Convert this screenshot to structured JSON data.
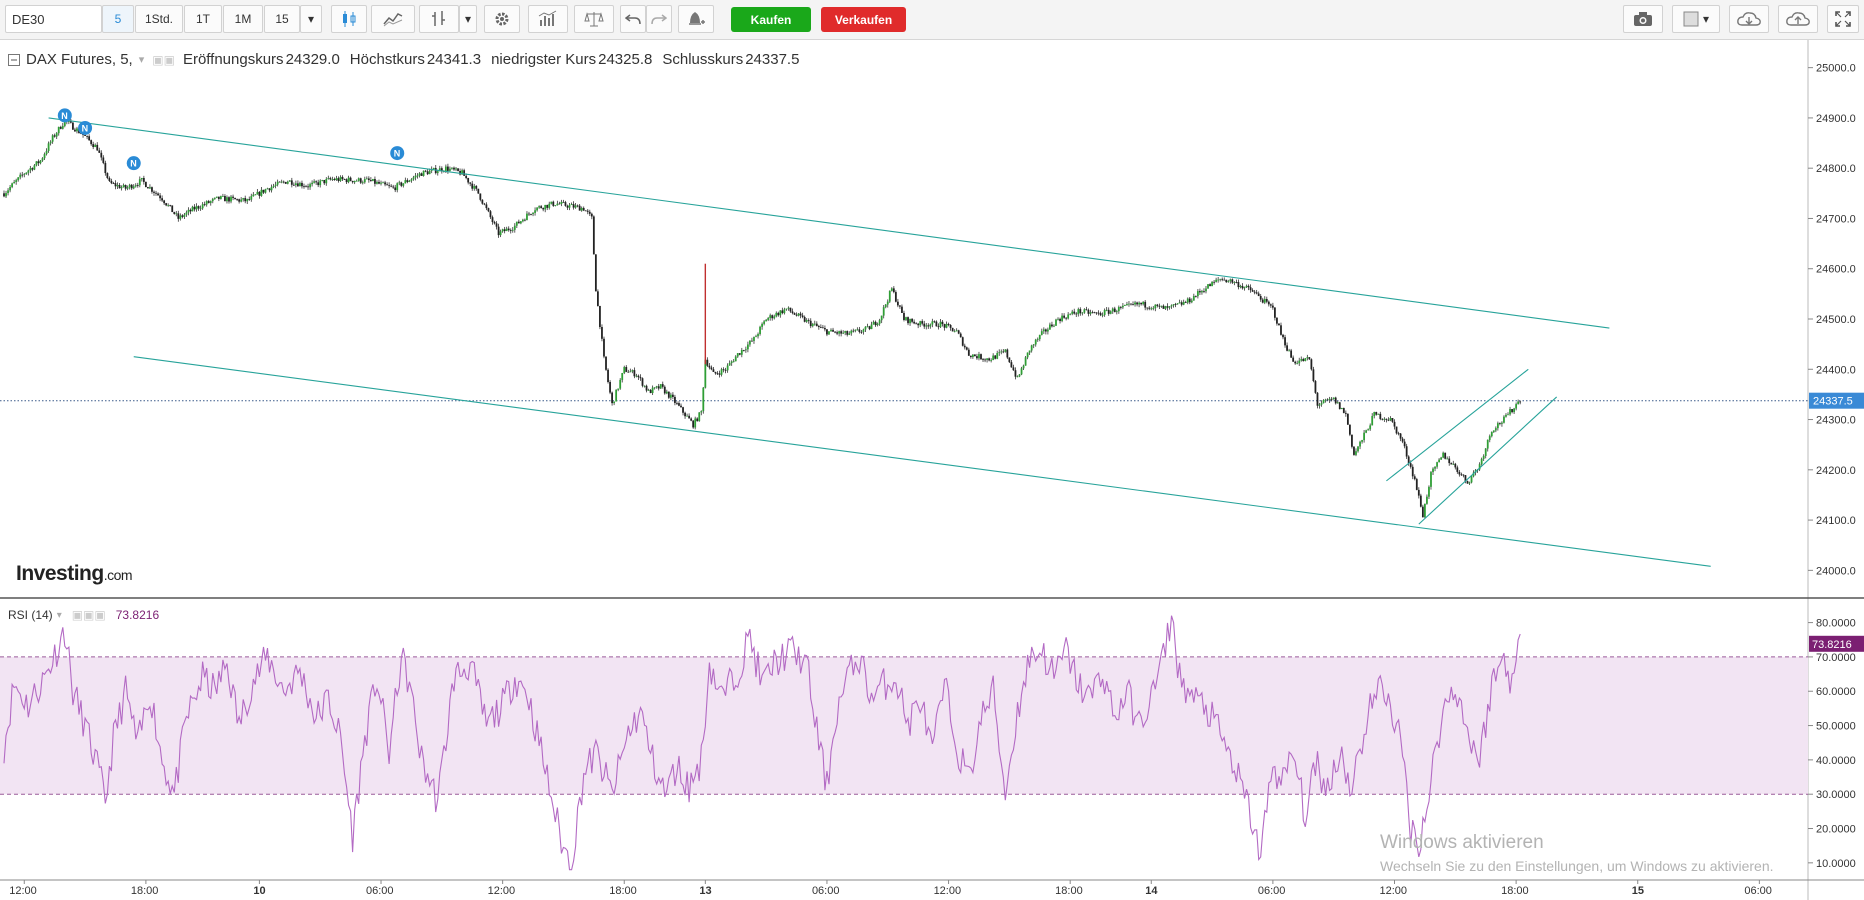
{
  "toolbar": {
    "symbol": "DE30",
    "interval": "5",
    "btn_1std": "1Std.",
    "btn_1t": "1T",
    "btn_1m": "1M",
    "btn_15": "15",
    "buy_label": "Kaufen",
    "sell_label": "Verkaufen",
    "colors": {
      "buy": "#1aa81a",
      "sell": "#e02b2b",
      "active": "#2a8bd6"
    },
    "icons": [
      "candlestick-icon",
      "indicator-icon",
      "chart-type-icon",
      "chevron-down-icon",
      "gear-icon",
      "compare-icon",
      "scale-icon",
      "undo-icon",
      "redo-icon",
      "alert-icon",
      "camera-icon",
      "color-box-icon",
      "chevron-down-icon",
      "cloud-load-icon",
      "cloud-save-icon",
      "fullscreen-icon"
    ]
  },
  "legend": {
    "instrument": "DAX Futures, 5,",
    "open_label": "Eröffnungskurs",
    "open_value": "24329.0",
    "high_label": "Höchstkurs",
    "high_value": "24341.3",
    "low_label": "niedrigster Kurs",
    "low_value": "24325.8",
    "close_label": "Schlusskurs",
    "close_value": "24337.5"
  },
  "rsi_legend": {
    "label": "RSI (14)",
    "value": "73.8216"
  },
  "logo": {
    "main": "Investing",
    "domain": ".com"
  },
  "watermark": {
    "line1": "Windows aktivieren",
    "line2": "Wechseln Sie zu den Einstellungen, um Windows zu aktivieren."
  },
  "chart_data": [
    {
      "type": "candlestick",
      "title": "DAX Futures, 5",
      "ylim": [
        23945,
        25055
      ],
      "yticks": [
        "24000.0",
        "24100.0",
        "24200.0",
        "24300.0",
        "24400.0",
        "24500.0",
        "24600.0",
        "24700.0",
        "24800.0",
        "24900.0",
        "25000.0"
      ],
      "yticks_values": [
        24000,
        24100,
        24200,
        24300,
        24400,
        24500,
        24600,
        24700,
        24800,
        24900,
        25000
      ],
      "current_price": 24337.5,
      "current_price_label": "24337.5",
      "xticks": [
        "12:00",
        "18:00",
        "10",
        "06:00",
        "12:00",
        "18:00",
        "13",
        "06:00",
        "12:00",
        "18:00",
        "14",
        "06:00",
        "12:00",
        "18:00",
        "15",
        "06:00"
      ],
      "xticks_index": [
        10,
        70,
        126,
        186,
        246,
        306,
        346,
        406,
        466,
        526,
        566,
        626,
        686,
        746,
        806,
        866
      ],
      "x_span": [
        0,
        890
      ],
      "price_path": [
        [
          0,
          24750
        ],
        [
          10,
          24790
        ],
        [
          18,
          24815
        ],
        [
          24,
          24860
        ],
        [
          30,
          24895
        ],
        [
          38,
          24870
        ],
        [
          46,
          24840
        ],
        [
          52,
          24770
        ],
        [
          60,
          24760
        ],
        [
          68,
          24775
        ],
        [
          78,
          24740
        ],
        [
          86,
          24700
        ],
        [
          94,
          24720
        ],
        [
          106,
          24740
        ],
        [
          120,
          24735
        ],
        [
          130,
          24760
        ],
        [
          140,
          24775
        ],
        [
          150,
          24765
        ],
        [
          162,
          24778
        ],
        [
          180,
          24775
        ],
        [
          192,
          24760
        ],
        [
          206,
          24790
        ],
        [
          218,
          24800
        ],
        [
          226,
          24790
        ],
        [
          234,
          24750
        ],
        [
          244,
          24670
        ],
        [
          252,
          24685
        ],
        [
          262,
          24720
        ],
        [
          272,
          24730
        ],
        [
          286,
          24720
        ],
        [
          290,
          24700
        ],
        [
          292,
          24560
        ],
        [
          296,
          24420
        ],
        [
          300,
          24330
        ],
        [
          306,
          24400
        ],
        [
          312,
          24390
        ],
        [
          318,
          24355
        ],
        [
          324,
          24365
        ],
        [
          330,
          24340
        ],
        [
          336,
          24310
        ],
        [
          340,
          24290
        ],
        [
          344,
          24315
        ],
        [
          346,
          24420
        ],
        [
          350,
          24390
        ],
        [
          356,
          24400
        ],
        [
          362,
          24430
        ],
        [
          370,
          24460
        ],
        [
          376,
          24500
        ],
        [
          386,
          24520
        ],
        [
          396,
          24495
        ],
        [
          406,
          24475
        ],
        [
          416,
          24470
        ],
        [
          426,
          24480
        ],
        [
          432,
          24500
        ],
        [
          438,
          24560
        ],
        [
          444,
          24500
        ],
        [
          452,
          24490
        ],
        [
          462,
          24490
        ],
        [
          470,
          24475
        ],
        [
          476,
          24430
        ],
        [
          486,
          24420
        ],
        [
          494,
          24435
        ],
        [
          500,
          24380
        ],
        [
          506,
          24440
        ],
        [
          512,
          24470
        ],
        [
          520,
          24500
        ],
        [
          530,
          24515
        ],
        [
          540,
          24510
        ],
        [
          550,
          24520
        ],
        [
          560,
          24530
        ],
        [
          574,
          24520
        ],
        [
          584,
          24535
        ],
        [
          592,
          24560
        ],
        [
          600,
          24580
        ],
        [
          606,
          24575
        ],
        [
          616,
          24555
        ],
        [
          626,
          24520
        ],
        [
          630,
          24470
        ],
        [
          636,
          24415
        ],
        [
          644,
          24420
        ],
        [
          648,
          24330
        ],
        [
          656,
          24340
        ],
        [
          662,
          24310
        ],
        [
          666,
          24230
        ],
        [
          670,
          24260
        ],
        [
          676,
          24310
        ],
        [
          684,
          24300
        ],
        [
          690,
          24255
        ],
        [
          696,
          24180
        ],
        [
          700,
          24110
        ],
        [
          704,
          24190
        ],
        [
          710,
          24230
        ],
        [
          716,
          24205
        ],
        [
          722,
          24175
        ],
        [
          728,
          24210
        ],
        [
          734,
          24280
        ],
        [
          740,
          24300
        ],
        [
          748,
          24340
        ]
      ],
      "spike": {
        "index": 346,
        "high": 24610,
        "low": 24410
      },
      "news_markers": [
        {
          "index": 30,
          "price": 24905,
          "label": "N"
        },
        {
          "index": 40,
          "price": 24880,
          "label": "N"
        },
        {
          "index": 64,
          "price": 24810,
          "label": "N"
        },
        {
          "index": 194,
          "price": 24830,
          "label": "N"
        }
      ],
      "trendlines": [
        {
          "from": [
            22,
            24900
          ],
          "to": [
            792,
            24482
          ]
        },
        {
          "from": [
            64,
            24425
          ],
          "to": [
            842,
            24008
          ]
        },
        {
          "from": [
            682,
            24178
          ],
          "to": [
            752,
            24400
          ]
        },
        {
          "from": [
            698,
            24092
          ],
          "to": [
            766,
            24345
          ]
        }
      ],
      "colors": {
        "up": "#2f9e35",
        "down": "#222222",
        "trendline": "#27a39a",
        "current_price_bg": "#3a8ad6"
      }
    },
    {
      "type": "line",
      "title": "RSI (14)",
      "ylim": [
        5,
        86
      ],
      "yticks": [
        "10.0000",
        "20.0000",
        "30.0000",
        "40.0000",
        "50.0000",
        "60.0000",
        "70.0000",
        "80.0000"
      ],
      "yticks_values": [
        10,
        20,
        30,
        40,
        50,
        60,
        70,
        80
      ],
      "band": [
        30,
        70
      ],
      "current_value": 73.8216,
      "current_value_label": "73.8216",
      "rsi_path": [
        [
          0,
          44
        ],
        [
          5,
          62
        ],
        [
          12,
          56
        ],
        [
          20,
          64
        ],
        [
          26,
          72
        ],
        [
          30,
          78
        ],
        [
          34,
          60
        ],
        [
          40,
          50
        ],
        [
          46,
          38
        ],
        [
          50,
          28
        ],
        [
          54,
          46
        ],
        [
          60,
          60
        ],
        [
          66,
          44
        ],
        [
          72,
          60
        ],
        [
          78,
          40
        ],
        [
          84,
          30
        ],
        [
          90,
          52
        ],
        [
          98,
          64
        ],
        [
          104,
          60
        ],
        [
          110,
          68
        ],
        [
          116,
          50
        ],
        [
          122,
          62
        ],
        [
          130,
          70
        ],
        [
          138,
          60
        ],
        [
          146,
          66
        ],
        [
          154,
          52
        ],
        [
          160,
          58
        ],
        [
          166,
          46
        ],
        [
          172,
          18
        ],
        [
          178,
          46
        ],
        [
          184,
          64
        ],
        [
          190,
          42
        ],
        [
          196,
          70
        ],
        [
          200,
          62
        ],
        [
          206,
          40
        ],
        [
          214,
          28
        ],
        [
          222,
          64
        ],
        [
          230,
          68
        ],
        [
          238,
          50
        ],
        [
          246,
          56
        ],
        [
          252,
          64
        ],
        [
          258,
          60
        ],
        [
          266,
          40
        ],
        [
          272,
          24
        ],
        [
          276,
          14
        ],
        [
          280,
          10
        ],
        [
          286,
          36
        ],
        [
          292,
          42
        ],
        [
          300,
          30
        ],
        [
          308,
          48
        ],
        [
          314,
          54
        ],
        [
          320,
          40
        ],
        [
          326,
          30
        ],
        [
          332,
          38
        ],
        [
          338,
          32
        ],
        [
          344,
          40
        ],
        [
          348,
          68
        ],
        [
          354,
          58
        ],
        [
          362,
          66
        ],
        [
          368,
          76
        ],
        [
          374,
          62
        ],
        [
          380,
          68
        ],
        [
          388,
          72
        ],
        [
          396,
          68
        ],
        [
          400,
          52
        ],
        [
          406,
          32
        ],
        [
          410,
          52
        ],
        [
          416,
          64
        ],
        [
          422,
          70
        ],
        [
          428,
          58
        ],
        [
          434,
          62
        ],
        [
          440,
          64
        ],
        [
          446,
          50
        ],
        [
          452,
          58
        ],
        [
          458,
          42
        ],
        [
          464,
          62
        ],
        [
          470,
          44
        ],
        [
          476,
          34
        ],
        [
          482,
          52
        ],
        [
          488,
          60
        ],
        [
          494,
          30
        ],
        [
          500,
          54
        ],
        [
          506,
          70
        ],
        [
          512,
          72
        ],
        [
          518,
          64
        ],
        [
          524,
          72
        ],
        [
          530,
          62
        ],
        [
          536,
          58
        ],
        [
          542,
          66
        ],
        [
          548,
          52
        ],
        [
          554,
          60
        ],
        [
          560,
          50
        ],
        [
          566,
          58
        ],
        [
          572,
          70
        ],
        [
          576,
          82
        ],
        [
          580,
          64
        ],
        [
          586,
          58
        ],
        [
          592,
          56
        ],
        [
          598,
          50
        ],
        [
          604,
          42
        ],
        [
          608,
          36
        ],
        [
          614,
          26
        ],
        [
          620,
          12
        ],
        [
          626,
          40
        ],
        [
          630,
          32
        ],
        [
          636,
          42
        ],
        [
          642,
          24
        ],
        [
          648,
          40
        ],
        [
          652,
          30
        ],
        [
          656,
          38
        ],
        [
          660,
          42
        ],
        [
          664,
          32
        ],
        [
          668,
          40
        ],
        [
          674,
          56
        ],
        [
          680,
          62
        ],
        [
          686,
          52
        ],
        [
          690,
          42
        ],
        [
          694,
          20
        ],
        [
          698,
          16
        ],
        [
          702,
          26
        ],
        [
          706,
          42
        ],
        [
          710,
          54
        ],
        [
          716,
          62
        ],
        [
          722,
          48
        ],
        [
          728,
          40
        ],
        [
          734,
          62
        ],
        [
          740,
          70
        ],
        [
          744,
          62
        ],
        [
          748,
          74
        ]
      ],
      "colors": {
        "line": "#b36ac4",
        "band": "#f2e4f3",
        "band_border": "#9a5a9a",
        "current_bg": "#7b1f72"
      }
    }
  ]
}
